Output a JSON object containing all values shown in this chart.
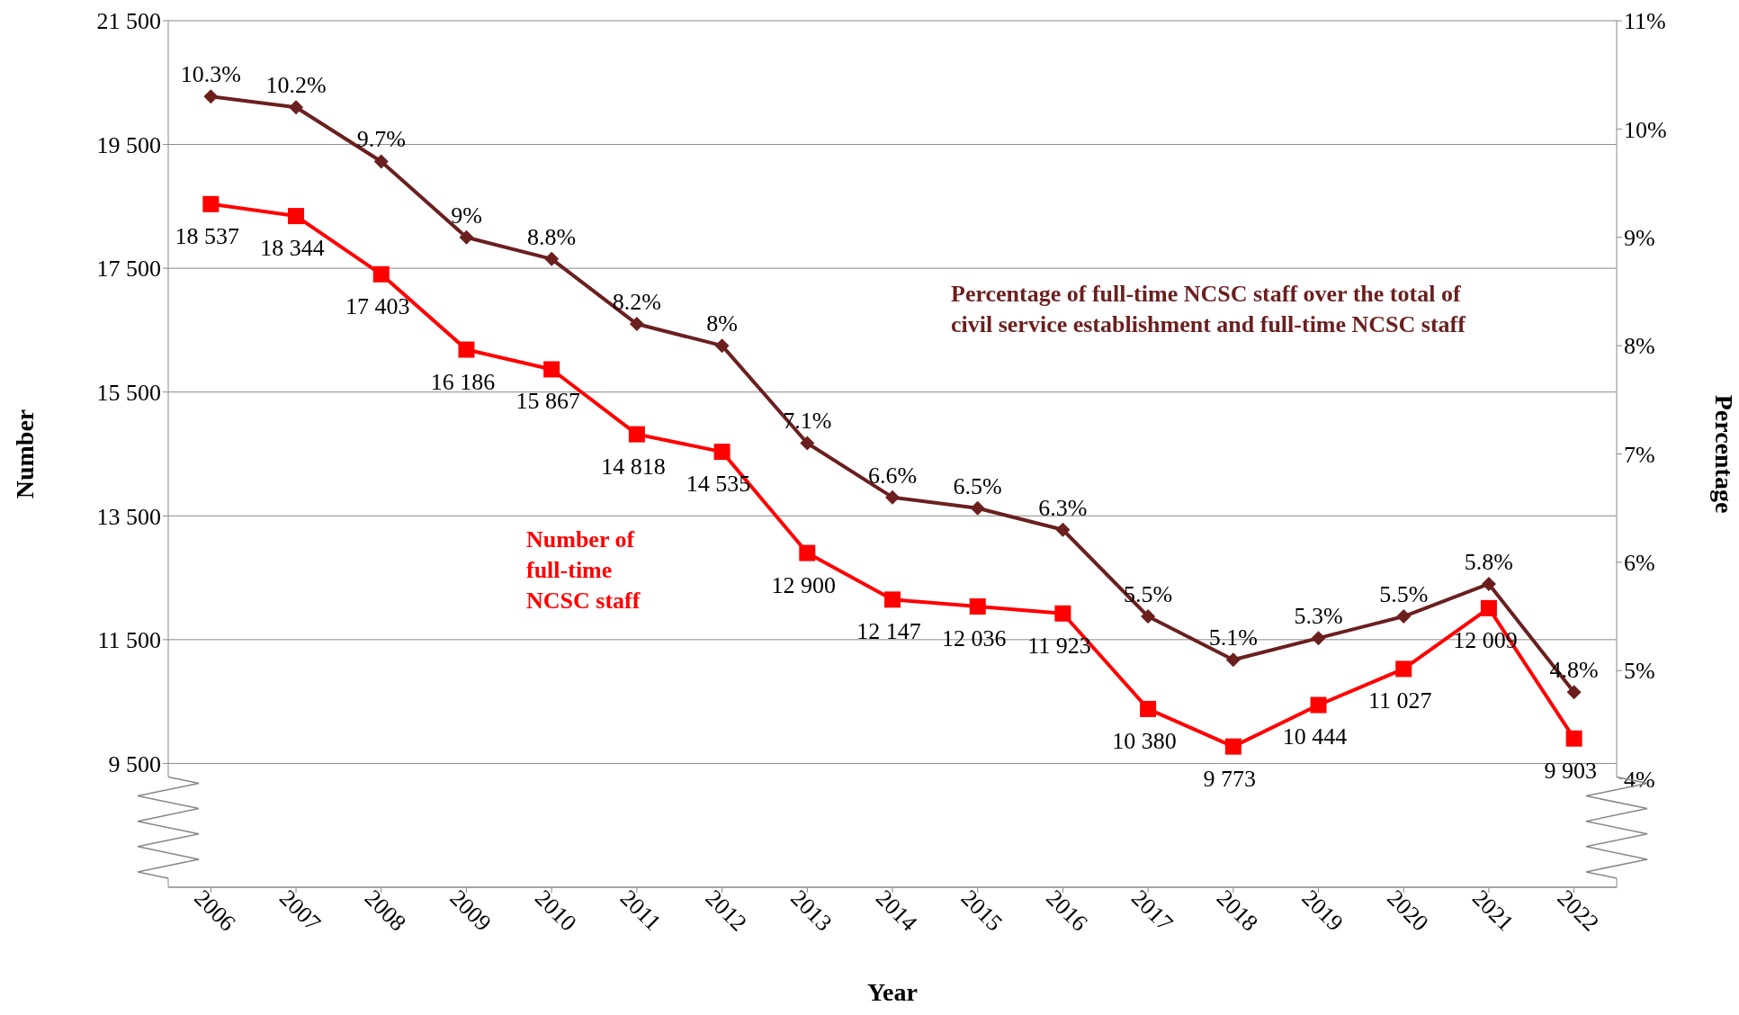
{
  "chart_data": {
    "type": "line",
    "xlabel": "Year",
    "ylabel": "Number",
    "y2label": "Percentage",
    "categories": [
      "2006",
      "2007",
      "2008",
      "2009",
      "2010",
      "2011",
      "2012",
      "2013",
      "2014",
      "2015",
      "2016",
      "2017",
      "2018",
      "2019",
      "2020",
      "2021",
      "2022"
    ],
    "ylim": [
      7500,
      21500
    ],
    "yticks": [
      {
        "value": 9500,
        "label": "9 500"
      },
      {
        "value": 11500,
        "label": "11 500"
      },
      {
        "value": 13500,
        "label": "13 500"
      },
      {
        "value": 15500,
        "label": "15 500"
      },
      {
        "value": 17500,
        "label": "17 500"
      },
      {
        "value": 19500,
        "label": "19 500"
      },
      {
        "value": 21500,
        "label": "21 500"
      }
    ],
    "y2lim": [
      3,
      11
    ],
    "y2ticks": [
      {
        "value": 4,
        "label": "4%"
      },
      {
        "value": 5,
        "label": "5%"
      },
      {
        "value": 6,
        "label": "6%"
      },
      {
        "value": 7,
        "label": "7%"
      },
      {
        "value": 8,
        "label": "8%"
      },
      {
        "value": 9,
        "label": "9%"
      },
      {
        "value": 10,
        "label": "10%"
      },
      {
        "value": 11,
        "label": "11%"
      }
    ],
    "grid": "y",
    "series": [
      {
        "name": "Number of full-time NCSC staff",
        "color": "#ff0000",
        "marker": "square",
        "values": [
          18537,
          18344,
          17403,
          16186,
          15867,
          14818,
          14535,
          12900,
          12147,
          12036,
          11923,
          10380,
          9773,
          10444,
          11027,
          12009,
          9903
        ],
        "value_labels": [
          "18 537",
          "18 344",
          "17 403",
          "16 186",
          "15 867",
          "14 818",
          "14 535",
          "12 900",
          "12 147",
          "12 036",
          "11 923",
          "10 380",
          "9 773",
          "10 444",
          "11 027",
          "12 009",
          "9 903"
        ]
      },
      {
        "name": "Percentage of full-time NCSC staff over the total of civil service establishment and full-time NCSC staff",
        "color": "#6b1f1f",
        "marker": "diamond",
        "axis": "y2",
        "values": [
          10.3,
          10.2,
          9.7,
          9,
          8.8,
          8.2,
          8,
          7.1,
          6.6,
          6.5,
          6.3,
          5.5,
          5.1,
          5.3,
          5.5,
          5.8,
          4.8
        ],
        "value_labels": [
          "10.3%",
          "10.2%",
          "9.7%",
          "9%",
          "8.8%",
          "8.2%",
          "8%",
          "7.1%",
          "6.6%",
          "6.5%",
          "6.3%",
          "5.5%",
          "5.1%",
          "5.3%",
          "5.5%",
          "5.8%",
          "4.8%"
        ]
      }
    ]
  }
}
